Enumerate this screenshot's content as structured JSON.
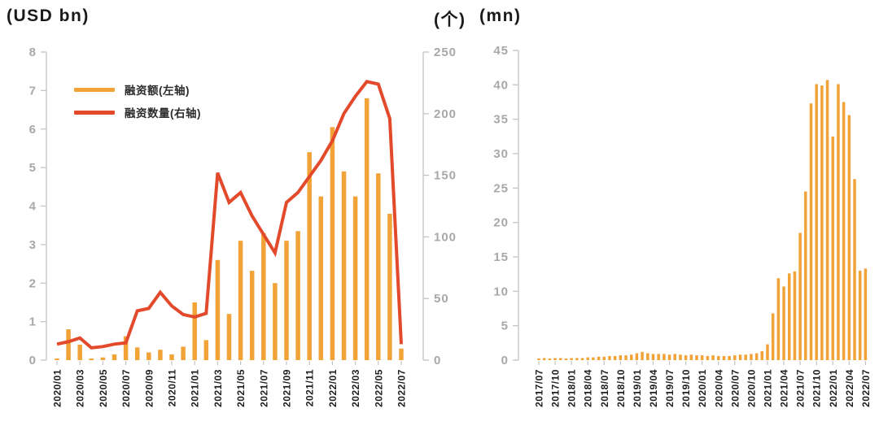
{
  "colors": {
    "bar": "#F2A338",
    "line": "#E24A2B",
    "axis_line": "#c4c4c4",
    "y_label": "#a8a8a8",
    "x_label": "#1f1f1f"
  },
  "chart_data": [
    {
      "type": "bar+line",
      "x": [
        "2020/01",
        "2020/02",
        "2020/03",
        "2020/04",
        "2020/05",
        "2020/06",
        "2020/07",
        "2020/08",
        "2020/09",
        "2020/10",
        "2020/11",
        "2020/12",
        "2021/01",
        "2021/02",
        "2021/03",
        "2021/04",
        "2021/05",
        "2021/06",
        "2021/07",
        "2021/08",
        "2021/09",
        "2021/10",
        "2021/11",
        "2021/12",
        "2022/01",
        "2022/02",
        "2022/03",
        "2022/04",
        "2022/05",
        "2022/06",
        "2022/07"
      ],
      "x_label_every": 2,
      "grid": false,
      "legend_position": "top-left",
      "left_axis": {
        "unit": "(USD bn)",
        "min": 0,
        "max": 8,
        "step": 1
      },
      "right_axis": {
        "unit": "(个)",
        "min": 0,
        "max": 250,
        "step": 50
      },
      "series": [
        {
          "name": "融资额(左轴)",
          "type": "bar",
          "axis": "left",
          "color": "#F2A338",
          "values": [
            0.04,
            0.8,
            0.4,
            0.04,
            0.07,
            0.15,
            0.62,
            0.33,
            0.2,
            0.27,
            0.15,
            0.35,
            1.5,
            0.52,
            2.6,
            1.2,
            3.1,
            2.32,
            3.3,
            2.0,
            3.1,
            3.35,
            5.4,
            4.25,
            6.05,
            4.9,
            4.25,
            6.8,
            4.85,
            3.8,
            0.3
          ]
        },
        {
          "name": "融资数量(右轴)",
          "type": "line",
          "axis": "right",
          "color": "#E24A2B",
          "values": [
            13,
            15,
            18,
            10,
            11,
            13,
            14,
            40,
            42,
            55,
            44,
            37,
            35,
            38,
            152,
            128,
            136,
            117,
            102,
            87,
            128,
            136,
            149,
            162,
            178,
            200,
            214,
            226,
            224,
            196,
            13
          ]
        }
      ]
    },
    {
      "type": "bar",
      "x": [
        "2017/07",
        "2017/08",
        "2017/09",
        "2017/10",
        "2017/11",
        "2017/12",
        "2018/01",
        "2018/02",
        "2018/03",
        "2018/04",
        "2018/05",
        "2018/06",
        "2018/07",
        "2018/08",
        "2018/09",
        "2018/10",
        "2018/11",
        "2018/12",
        "2019/01",
        "2019/02",
        "2019/03",
        "2019/04",
        "2019/05",
        "2019/06",
        "2019/07",
        "2019/08",
        "2019/09",
        "2019/10",
        "2019/11",
        "2019/12",
        "2020/01",
        "2020/02",
        "2020/03",
        "2020/04",
        "2020/05",
        "2020/06",
        "2020/07",
        "2020/08",
        "2020/09",
        "2020/10",
        "2020/11",
        "2020/12",
        "2021/01",
        "2021/02",
        "2021/03",
        "2021/04",
        "2021/05",
        "2021/06",
        "2021/07",
        "2021/08",
        "2021/09",
        "2021/10",
        "2021/11",
        "2021/12",
        "2022/01",
        "2022/02",
        "2022/03",
        "2022/04",
        "2022/05",
        "2022/06",
        "2022/07"
      ],
      "x_label_every": 3,
      "grid": false,
      "left_axis": {
        "unit": "(mn)",
        "min": 0,
        "max": 45,
        "step": 5
      },
      "series": [
        {
          "type": "bar",
          "axis": "left",
          "color": "#F2A338",
          "values": [
            0.2,
            0.3,
            0.2,
            0.3,
            0.3,
            0.2,
            0.3,
            0.3,
            0.3,
            0.4,
            0.4,
            0.5,
            0.5,
            0.6,
            0.6,
            0.7,
            0.7,
            0.8,
            1.0,
            1.2,
            1.0,
            0.9,
            0.9,
            0.9,
            0.8,
            0.9,
            0.8,
            0.7,
            0.8,
            0.7,
            0.7,
            0.6,
            0.7,
            0.6,
            0.6,
            0.6,
            0.7,
            0.8,
            0.8,
            0.9,
            1.0,
            1.3,
            2.3,
            6.8,
            11.9,
            10.7,
            12.6,
            12.9,
            18.5,
            24.5,
            37.3,
            40.1,
            39.9,
            40.7,
            32.5,
            40.1,
            37.5,
            35.6,
            26.3,
            13.0,
            13.3
          ]
        }
      ]
    }
  ]
}
